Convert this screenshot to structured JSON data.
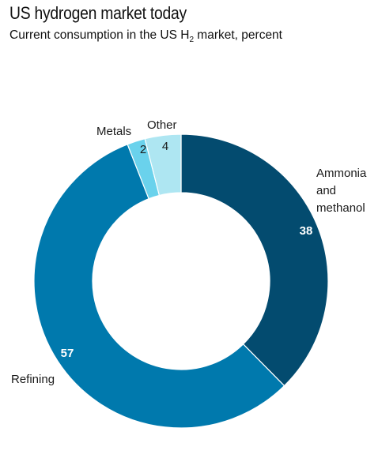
{
  "header": {
    "title": "US hydrogen market today",
    "subtitle_pre": "Current consumption in the US H",
    "subtitle_sub": "2",
    "subtitle_post": " market, percent"
  },
  "chart_data": {
    "type": "pie",
    "style": "donut",
    "title": "US hydrogen market today",
    "subtitle": "Current consumption in the US H2 market, percent",
    "categories": [
      "Ammonia and methanol",
      "Refining",
      "Metals",
      "Other"
    ],
    "category_label_lines": [
      [
        "Ammonia",
        "and",
        "methanol"
      ],
      [
        "Refining"
      ],
      [
        "Metals"
      ],
      [
        "Other"
      ]
    ],
    "values": [
      38,
      57,
      2,
      4
    ],
    "colors": [
      "#034b6f",
      "#0079ad",
      "#6ad2ec",
      "#aee6f2"
    ],
    "value_label_colors": [
      "#ffffff",
      "#ffffff",
      "#1a1a1a",
      "#1a1a1a"
    ],
    "start": "12 o'clock",
    "direction": "clockwise"
  }
}
